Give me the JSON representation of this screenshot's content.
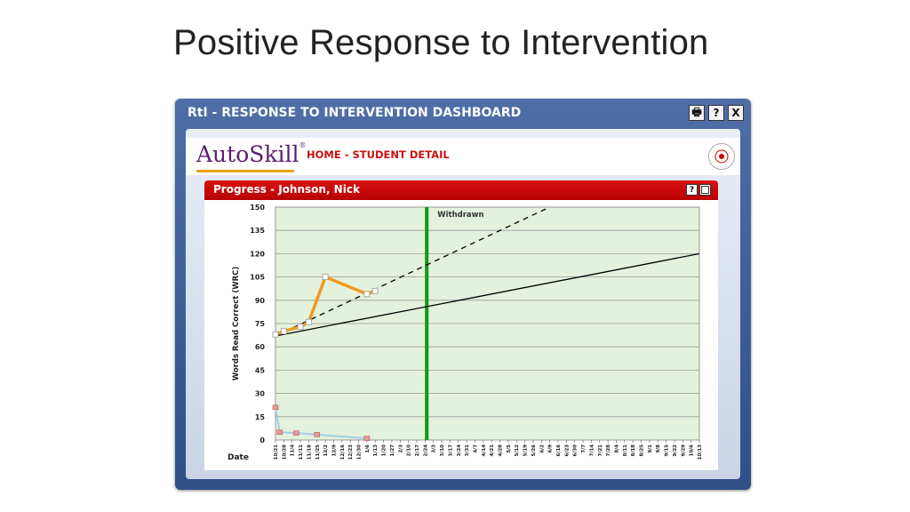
{
  "slide": {
    "title": "Positive Response to Intervention"
  },
  "window": {
    "title": "RtI - RESPONSE TO INTERVENTION DASHBOARD",
    "buttons": [
      {
        "name": "print-icon",
        "glyph": "🖶"
      },
      {
        "name": "help-icon",
        "glyph": "?"
      },
      {
        "name": "close-icon",
        "glyph": "X"
      }
    ]
  },
  "header": {
    "logo": "AutoSkill",
    "logo_mark": "®",
    "breadcrumb": "HOME - STUDENT DETAIL"
  },
  "panel": {
    "title": "Progress - Johnson, Nick",
    "help_glyph": "?"
  },
  "chart_data": {
    "type": "line",
    "ylabel": "Words Read Correct (WRC)",
    "xlabel": "Date",
    "ylim": [
      0,
      150
    ],
    "yticks": [
      0,
      15,
      30,
      45,
      60,
      75,
      90,
      105,
      120,
      135,
      150
    ],
    "x_dates": [
      "10/21",
      "10/28",
      "11/4",
      "11/11",
      "11/18",
      "11/25",
      "12/2",
      "12/9",
      "12/16",
      "12/23",
      "12/30",
      "1/6",
      "1/13",
      "1/20",
      "1/27",
      "2/3",
      "2/10",
      "2/17",
      "2/24",
      "3/3",
      "3/10",
      "3/17",
      "3/24",
      "3/31",
      "4/7",
      "4/14",
      "4/21",
      "4/28",
      "5/5",
      "5/12",
      "5/19",
      "5/26",
      "6/2",
      "6/9",
      "6/16",
      "6/23",
      "6/30",
      "7/7",
      "7/14",
      "7/21",
      "7/28",
      "8/4",
      "8/11",
      "8/18",
      "8/25",
      "9/1",
      "9/8",
      "9/15",
      "9/22",
      "9/29",
      "10/6",
      "10/13"
    ],
    "marker": {
      "label": "Withdrawn",
      "x_index": 18.2,
      "color": "#0a9a1a"
    },
    "series": [
      {
        "role": "wrc",
        "color": "#f09a1e",
        "style": "solid",
        "points": [
          [
            0,
            68
          ],
          [
            1,
            70
          ],
          [
            3,
            73
          ],
          [
            4,
            76
          ],
          [
            6,
            105
          ],
          [
            11,
            94
          ],
          [
            12,
            96
          ]
        ]
      },
      {
        "role": "errors",
        "color": "#9fd0ea",
        "style": "solid",
        "points": [
          [
            0,
            21
          ],
          [
            0.5,
            5
          ],
          [
            2.5,
            4.5
          ],
          [
            5,
            3.5
          ],
          [
            11,
            1
          ]
        ]
      },
      {
        "role": "goal",
        "color": "#000000",
        "style": "dashed",
        "points": [
          [
            0,
            67
          ],
          [
            33,
            150
          ]
        ]
      },
      {
        "role": "trend",
        "color": "#000000",
        "style": "solid",
        "points": [
          [
            0,
            67
          ],
          [
            51,
            120
          ]
        ]
      }
    ],
    "grid": true,
    "background": "#e4f1dc"
  }
}
